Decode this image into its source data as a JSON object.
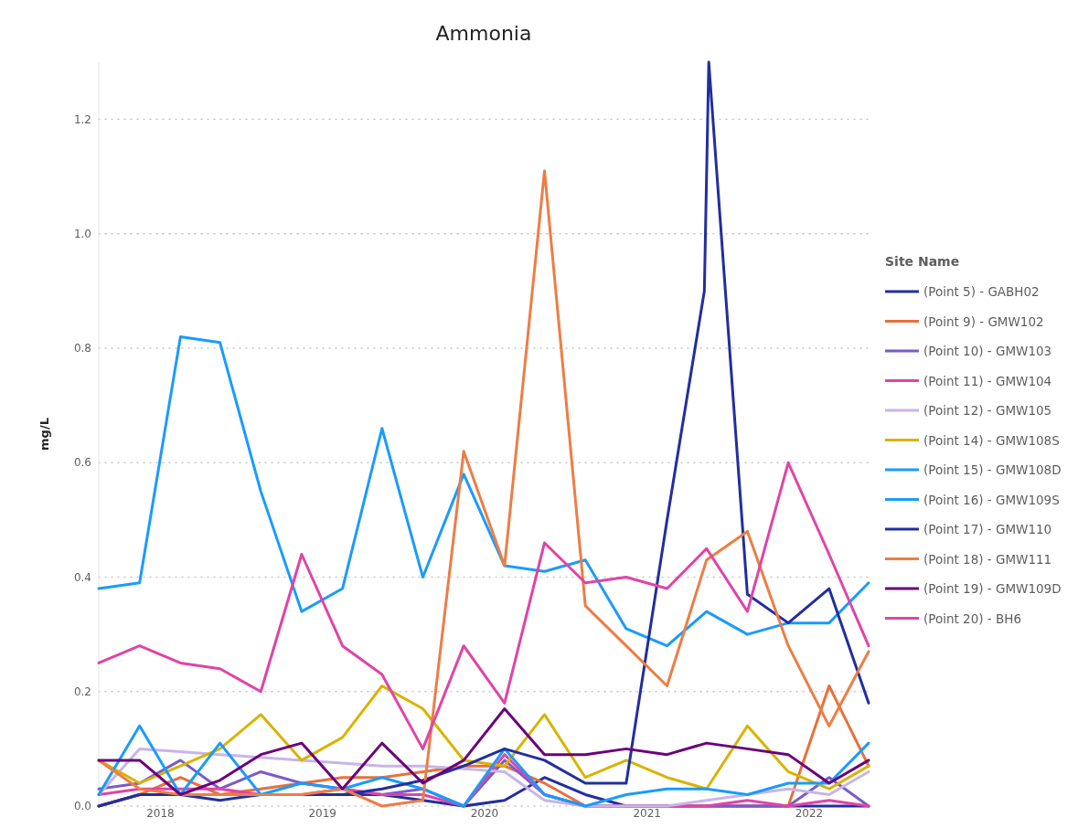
{
  "chart_data": {
    "type": "line",
    "title": "Ammonia",
    "ylabel": "mg/L",
    "legend_title": "Site Name",
    "legend": "right",
    "grid": "y",
    "x": [
      "2017-08-15",
      "2017-11-15",
      "2018-02-15",
      "2018-05-15",
      "2018-08-15",
      "2018-11-15",
      "2019-02-15",
      "2019-05-15",
      "2019-08-15",
      "2019-11-15",
      "2020-02-15",
      "2020-05-15",
      "2020-08-15",
      "2020-11-15",
      "2021-02-15",
      "2021-05-15",
      "2021-08-15",
      "2021-11-15",
      "2022-02-15",
      "2022-05-15"
    ],
    "xlim": [
      "2017-08-15",
      "2022-05-15"
    ],
    "xticks": [
      "2018",
      "2019",
      "2020",
      "2021",
      "2022"
    ],
    "ylim": [
      0,
      1.3
    ],
    "yticks": [
      {
        "value": 0,
        "label": "0.0"
      },
      {
        "value": 0.2,
        "label": "0.2"
      },
      {
        "value": 0.4,
        "label": "0.4"
      },
      {
        "value": 0.6,
        "label": "0.6"
      },
      {
        "value": 0.8,
        "label": "0.8"
      },
      {
        "value": 1,
        "label": "1.0"
      },
      {
        "value": 1.2,
        "label": "1.2"
      }
    ],
    "series": [
      {
        "name": "(Point 5) - GABH02",
        "color": "#222e9e",
        "values": [
          0,
          0.02,
          0.02,
          0.02,
          0.02,
          0.02,
          0.02,
          0.02,
          0.01,
          0,
          0.01,
          0.05,
          0.02,
          0,
          0,
          0,
          0,
          0,
          0,
          0
        ]
      },
      {
        "name": "(Point 9) - GMW102",
        "color": "#e8703a",
        "values": [
          0,
          0.02,
          0.05,
          0.02,
          0.03,
          0.04,
          0.05,
          0.05,
          0.06,
          0.07,
          0.07,
          0.04,
          0,
          0,
          0,
          0,
          0,
          0,
          0.21,
          0.07
        ]
      },
      {
        "name": "(Point 10) - GMW103",
        "color": "#7a5cc8",
        "values": [
          0.03,
          0.04,
          0.08,
          0.03,
          0.06,
          0.04,
          0.03,
          0.02,
          0.03,
          0,
          0.08,
          0.02,
          0,
          0,
          0,
          0,
          0,
          0,
          0.05,
          0
        ]
      },
      {
        "name": "(Point 11) - GMW104",
        "color": "#e044a7",
        "values": [
          0.02,
          0.03,
          0.03,
          0.03,
          0.02,
          0.02,
          0.03,
          0.02,
          0.02,
          0,
          0.09,
          0.02,
          0,
          0,
          0,
          0,
          0.01,
          0,
          0.01,
          0
        ]
      },
      {
        "name": "(Point 12) - GMW105",
        "color": "#c8b5e6",
        "values": [
          0.02,
          0.1,
          0.095,
          0.09,
          0.085,
          0.08,
          0.075,
          0.07,
          0.07,
          0.065,
          0.06,
          0.01,
          0,
          0,
          0,
          0.01,
          0.02,
          0.03,
          0.02,
          0.06
        ]
      },
      {
        "name": "(Point 14) - GMW108S",
        "color": "#d9b300",
        "values": [
          0.08,
          0.04,
          0.07,
          0.1,
          0.16,
          0.08,
          0.12,
          0.21,
          0.17,
          0.08,
          0.07,
          0.16,
          0.05,
          0.08,
          0.05,
          0.03,
          0.14,
          0.06,
          0.03,
          0.07
        ]
      },
      {
        "name": "(Point 15) - GMW108D",
        "color": "#1a9bfc",
        "values": [
          0.38,
          0.39,
          0.82,
          0.81,
          0.55,
          0.34,
          0.38,
          0.66,
          0.4,
          0.58,
          0.42,
          0.41,
          0.43,
          0.31,
          0.28,
          0.34,
          0.3,
          0.32,
          0.32,
          0.39
        ]
      },
      {
        "name": "(Point 16) - GMW109S",
        "color": "#1a9bfc",
        "values": [
          0.02,
          0.14,
          0.02,
          0.11,
          0.02,
          0.04,
          0.03,
          0.05,
          0.03,
          0,
          0.1,
          0.02,
          0,
          0.02,
          0.03,
          0.03,
          0.02,
          0.04,
          0.04,
          0.11
        ]
      },
      {
        "name": "(Point 17) - GMW110",
        "color": "#222e9e",
        "x": [
          "2017-08-15",
          "2017-11-15",
          "2018-02-15",
          "2018-05-15",
          "2018-08-15",
          "2018-11-15",
          "2019-02-15",
          "2019-05-15",
          "2019-08-15",
          "2019-11-15",
          "2020-02-15",
          "2020-05-15",
          "2020-08-15",
          "2020-11-15",
          "2021-02-15",
          "2021-05-10",
          "2021-05-20",
          "2021-08-15",
          "2021-11-15",
          "2022-02-15",
          "2022-05-15"
        ],
        "values": [
          0,
          0.02,
          0.02,
          0.01,
          0.02,
          0.02,
          0.02,
          0.03,
          0.045,
          0.07,
          0.1,
          0.08,
          0.04,
          0.04,
          0.5,
          0.9,
          1.3,
          0.37,
          0.32,
          0.38,
          0.18
        ]
      },
      {
        "name": "(Point 18) - GMW111",
        "color": "#ed7d45",
        "values": [
          0.08,
          0.03,
          0.02,
          0.02,
          0.02,
          0.02,
          0.03,
          0,
          0.01,
          0.62,
          0.42,
          1.11,
          0.35,
          0.28,
          0.21,
          0.43,
          0.48,
          0.28,
          0.14,
          0.27
        ]
      },
      {
        "name": "(Point 19) - GMW109D",
        "color": "#6b007b",
        "values": [
          0.08,
          0.08,
          0.02,
          0.045,
          0.09,
          0.11,
          0.03,
          0.11,
          0.04,
          0.08,
          0.17,
          0.09,
          0.09,
          0.1,
          0.09,
          0.11,
          0.1,
          0.09,
          0.04,
          0.08
        ]
      },
      {
        "name": "(Point 20) - BH6",
        "color": "#e044a7",
        "values": [
          0.25,
          0.28,
          0.25,
          0.24,
          0.2,
          0.44,
          0.28,
          0.23,
          0.1,
          0.28,
          0.18,
          0.46,
          0.39,
          0.4,
          0.38,
          0.45,
          0.34,
          0.6,
          0.44,
          0.28
        ]
      }
    ]
  }
}
